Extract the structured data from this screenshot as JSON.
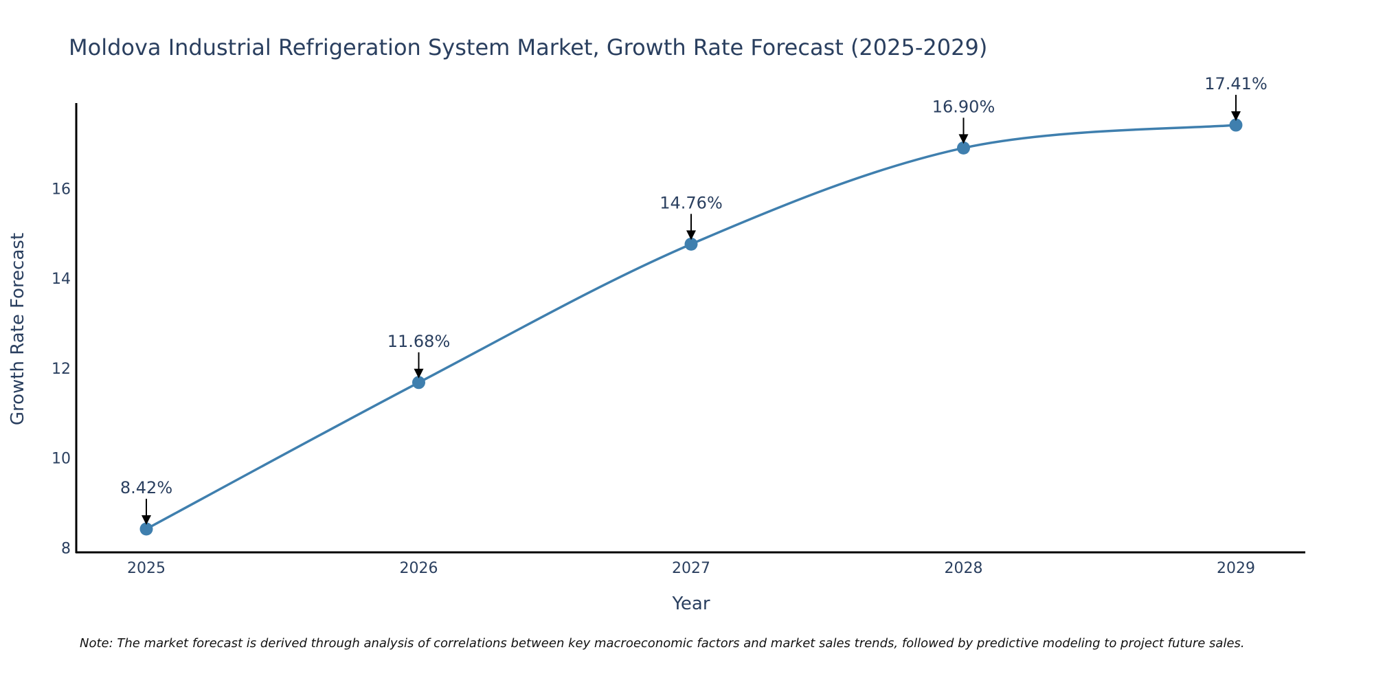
{
  "chart_data": {
    "type": "line",
    "title": "Moldova Industrial Refrigeration System Market, Growth Rate Forecast (2025-2029)",
    "xlabel": "Year",
    "ylabel": "Growth Rate Forecast",
    "categories": [
      "2025",
      "2026",
      "2027",
      "2028",
      "2029"
    ],
    "values": [
      8.42,
      11.68,
      14.76,
      16.9,
      17.41
    ],
    "data_labels": [
      "8.42%",
      "11.68%",
      "14.76%",
      "16.90%",
      "17.41%"
    ],
    "yticks": [
      8,
      10,
      12,
      14,
      16
    ],
    "ylim": [
      7.9,
      17.9
    ],
    "line_color": "#3f7fae",
    "marker_color": "#3f7fae",
    "arrow_color": "#000000",
    "grid": false,
    "legend": "none"
  },
  "note": "Note: The market forecast is derived through analysis of correlations between key macroeconomic factors and market sales trends, followed by predictive modeling to project future sales."
}
